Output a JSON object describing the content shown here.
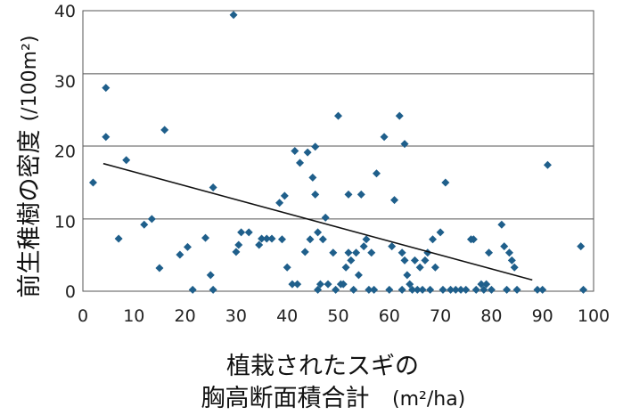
{
  "chart_data": {
    "type": "scatter",
    "xlabel": "植栽されたスギの",
    "xlabel_line2": "胸高断面積合計",
    "xlabel_unit": "(m²/ha)",
    "ylabel": "前生稚樹の密度",
    "ylabel_unit": "(/100m²)",
    "xlim": [
      0,
      100
    ],
    "ylim": [
      0,
      40
    ],
    "x_ticks": [
      "0",
      "10",
      "20",
      "30",
      "40",
      "50",
      "60",
      "70",
      "80",
      "90",
      "100"
    ],
    "y_ticks": [
      "0",
      "10",
      "20",
      "30",
      "40"
    ],
    "y_gridlines": [
      10.3,
      20.7,
      31.0
    ],
    "marker_color": "#1f5f8b",
    "trendline": {
      "x": [
        4,
        88
      ],
      "y": [
        18.2,
        1.6
      ],
      "color": "#111111"
    },
    "points": [
      {
        "x": 2,
        "y": 15.5
      },
      {
        "x": 4.5,
        "y": 29
      },
      {
        "x": 4.5,
        "y": 22
      },
      {
        "x": 7,
        "y": 7.5
      },
      {
        "x": 8.5,
        "y": 18.7
      },
      {
        "x": 12,
        "y": 9.5
      },
      {
        "x": 13.5,
        "y": 10.3
      },
      {
        "x": 15,
        "y": 3.3
      },
      {
        "x": 16,
        "y": 23
      },
      {
        "x": 19,
        "y": 5.2
      },
      {
        "x": 20.5,
        "y": 6.3
      },
      {
        "x": 21.5,
        "y": 0.2
      },
      {
        "x": 24,
        "y": 7.6
      },
      {
        "x": 25,
        "y": 2.3
      },
      {
        "x": 25.5,
        "y": 0.2
      },
      {
        "x": 25.5,
        "y": 14.8
      },
      {
        "x": 29.5,
        "y": 39.4
      },
      {
        "x": 30,
        "y": 5.6
      },
      {
        "x": 30.5,
        "y": 6.6
      },
      {
        "x": 31,
        "y": 8.4
      },
      {
        "x": 32.5,
        "y": 8.4
      },
      {
        "x": 34.5,
        "y": 6.6
      },
      {
        "x": 35,
        "y": 7.5
      },
      {
        "x": 36,
        "y": 7.5
      },
      {
        "x": 37,
        "y": 7.5
      },
      {
        "x": 38.5,
        "y": 12.6
      },
      {
        "x": 39,
        "y": 7.4
      },
      {
        "x": 39.5,
        "y": 13.6
      },
      {
        "x": 40,
        "y": 3.4
      },
      {
        "x": 41,
        "y": 1
      },
      {
        "x": 41.5,
        "y": 20
      },
      {
        "x": 42,
        "y": 1
      },
      {
        "x": 42.5,
        "y": 18.3
      },
      {
        "x": 43.5,
        "y": 5.6
      },
      {
        "x": 44,
        "y": 19.8
      },
      {
        "x": 44.5,
        "y": 7.4
      },
      {
        "x": 45,
        "y": 16.2
      },
      {
        "x": 45.5,
        "y": 20.6
      },
      {
        "x": 45.5,
        "y": 13.8
      },
      {
        "x": 46,
        "y": 0.2
      },
      {
        "x": 46,
        "y": 8.4
      },
      {
        "x": 46.5,
        "y": 1
      },
      {
        "x": 47,
        "y": 7.4
      },
      {
        "x": 47.5,
        "y": 10.5
      },
      {
        "x": 48,
        "y": 1
      },
      {
        "x": 49,
        "y": 5.5
      },
      {
        "x": 49.5,
        "y": 0.2
      },
      {
        "x": 50,
        "y": 25
      },
      {
        "x": 50.5,
        "y": 1
      },
      {
        "x": 51,
        "y": 1
      },
      {
        "x": 51.5,
        "y": 3.4
      },
      {
        "x": 52,
        "y": 5.5
      },
      {
        "x": 52,
        "y": 13.8
      },
      {
        "x": 52.5,
        "y": 4.4
      },
      {
        "x": 53,
        "y": 0.2
      },
      {
        "x": 53.5,
        "y": 5.5
      },
      {
        "x": 54,
        "y": 2.3
      },
      {
        "x": 54.5,
        "y": 13.8
      },
      {
        "x": 55,
        "y": 6.4
      },
      {
        "x": 55.5,
        "y": 7.4
      },
      {
        "x": 56,
        "y": 0.2
      },
      {
        "x": 56.5,
        "y": 5.5
      },
      {
        "x": 57,
        "y": 0.2
      },
      {
        "x": 57.5,
        "y": 16.8
      },
      {
        "x": 59,
        "y": 22
      },
      {
        "x": 60,
        "y": 0.2
      },
      {
        "x": 60.5,
        "y": 6.4
      },
      {
        "x": 61,
        "y": 13
      },
      {
        "x": 62,
        "y": 25
      },
      {
        "x": 62.5,
        "y": 0.2
      },
      {
        "x": 62.5,
        "y": 5.5
      },
      {
        "x": 63,
        "y": 21
      },
      {
        "x": 63,
        "y": 4.4
      },
      {
        "x": 63.5,
        "y": 2.3
      },
      {
        "x": 64,
        "y": 1
      },
      {
        "x": 64.5,
        "y": 0.2
      },
      {
        "x": 65,
        "y": 4.4
      },
      {
        "x": 65.5,
        "y": 0.2
      },
      {
        "x": 66,
        "y": 3.4
      },
      {
        "x": 66.5,
        "y": 0.2
      },
      {
        "x": 67,
        "y": 4.4
      },
      {
        "x": 67.5,
        "y": 5.5
      },
      {
        "x": 68,
        "y": 0.2
      },
      {
        "x": 68.5,
        "y": 7.4
      },
      {
        "x": 69,
        "y": 3.4
      },
      {
        "x": 70,
        "y": 8.4
      },
      {
        "x": 70.5,
        "y": 0.2
      },
      {
        "x": 71,
        "y": 15.5
      },
      {
        "x": 72,
        "y": 0.2
      },
      {
        "x": 73,
        "y": 0.2
      },
      {
        "x": 74,
        "y": 0.2
      },
      {
        "x": 75,
        "y": 0.2
      },
      {
        "x": 76,
        "y": 7.4
      },
      {
        "x": 76.5,
        "y": 7.4
      },
      {
        "x": 77,
        "y": 0.2
      },
      {
        "x": 78,
        "y": 1
      },
      {
        "x": 78.5,
        "y": 0.2
      },
      {
        "x": 79,
        "y": 1
      },
      {
        "x": 79.5,
        "y": 5.5
      },
      {
        "x": 80,
        "y": 0.2
      },
      {
        "x": 82,
        "y": 9.5
      },
      {
        "x": 82.5,
        "y": 6.4
      },
      {
        "x": 83,
        "y": 0.2
      },
      {
        "x": 83.5,
        "y": 5.5
      },
      {
        "x": 84,
        "y": 4.4
      },
      {
        "x": 84.5,
        "y": 3.4
      },
      {
        "x": 85,
        "y": 0.2
      },
      {
        "x": 89,
        "y": 0.2
      },
      {
        "x": 90,
        "y": 0.2
      },
      {
        "x": 91,
        "y": 18
      },
      {
        "x": 97.5,
        "y": 6.4
      },
      {
        "x": 98,
        "y": 0.2
      }
    ]
  }
}
